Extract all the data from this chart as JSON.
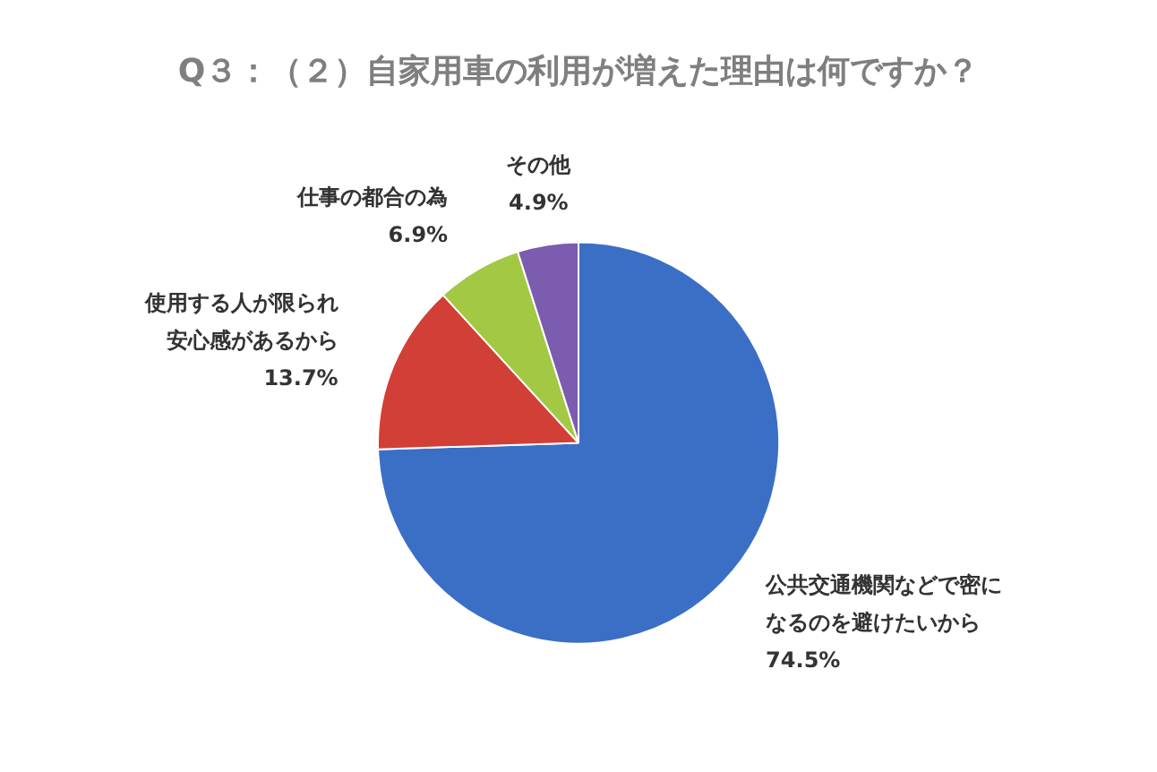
{
  "chart_data": {
    "type": "pie",
    "title": "Q３：（２）自家用車の利用が増えた理由は何ですか？",
    "categories": [
      "公共交通機関などで密になるのを避けたいから",
      "使用する人が限られ安心感があるから",
      "仕事の都合の為",
      "その他"
    ],
    "values": [
      74.5,
      13.7,
      6.9,
      4.9
    ],
    "value_labels": [
      "74.5%",
      "13.7%",
      "6.9%",
      "4.9%"
    ],
    "colors": [
      "#3b6fc6",
      "#d23f36",
      "#a3c843",
      "#7b5cae"
    ],
    "legend": false
  }
}
